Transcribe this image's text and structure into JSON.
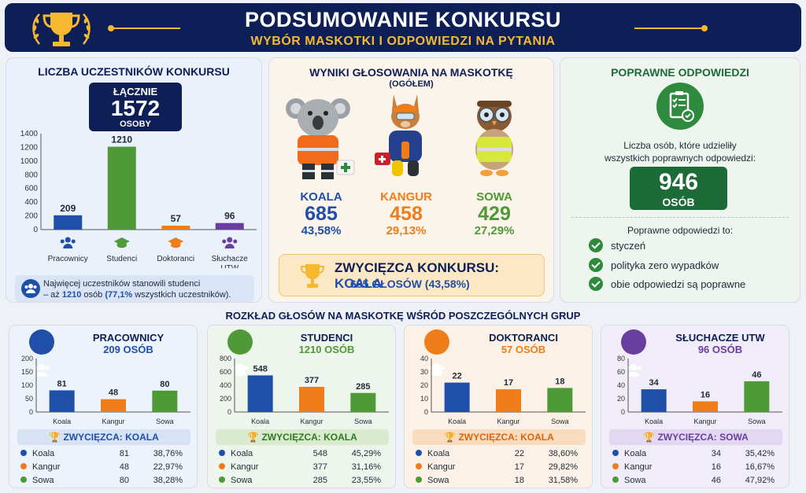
{
  "header": {
    "title": "PODSUMOWANIE KONKURSU",
    "subtitle": "WYBÓR MASKOTKI I ODPOWIEDZI NA PYTANIA"
  },
  "colors": {
    "navy": "#0e1f57",
    "gold": "#f5b82e",
    "blue": "#1f4fa8",
    "green": "#4e9a36",
    "orange": "#ef7d1a",
    "purple": "#6a3ea1"
  },
  "participants": {
    "title": "LICZBA UCZESTNIKÓW KONKURSU",
    "total_label": "ŁĄCZNIE",
    "total_value": "1572",
    "total_unit": "OSOBY",
    "note_text": "Najwięcej uczestników stanowili studenci",
    "note_prefix": "– aż ",
    "note_count": "1210",
    "note_mid": " osób ",
    "note_pct": "(77,1%",
    "note_suffix": " wszystkich uczestników)."
  },
  "chart_data": [
    {
      "type": "bar",
      "id": "participants",
      "categories": [
        "Pracownicy",
        "Studenci",
        "Doktoranci",
        "Słuchacze UTW"
      ],
      "values": [
        209,
        1210,
        57,
        96
      ],
      "ylim": [
        0,
        1400
      ],
      "yticks": [
        "0",
        "200",
        "400",
        "600",
        "800",
        "1000",
        "1200",
        "1400"
      ],
      "colors": [
        "#1f4fa8",
        "#4e9a36",
        "#ef7d1a",
        "#6a3ea1"
      ]
    },
    {
      "type": "bar",
      "id": "g1",
      "categories": [
        "Koala",
        "Kangur",
        "Sowa"
      ],
      "values": [
        81,
        48,
        80
      ],
      "ylim": [
        0,
        200
      ],
      "yticks": [
        "0",
        "50",
        "100",
        "150",
        "200"
      ]
    },
    {
      "type": "bar",
      "id": "g2",
      "categories": [
        "Koala",
        "Kangur",
        "Sowa"
      ],
      "values": [
        548,
        377,
        285
      ],
      "ylim": [
        0,
        800
      ],
      "yticks": [
        "0",
        "200",
        "400",
        "600",
        "800"
      ]
    },
    {
      "type": "bar",
      "id": "g3",
      "categories": [
        "Koala",
        "Kangur",
        "Sowa"
      ],
      "values": [
        22,
        17,
        18
      ],
      "ylim": [
        0,
        40
      ],
      "yticks": [
        "0",
        "10",
        "20",
        "30",
        "40"
      ]
    },
    {
      "type": "bar",
      "id": "g4",
      "categories": [
        "Koala",
        "Kangur",
        "Sowa"
      ],
      "values": [
        34,
        16,
        46
      ],
      "ylim": [
        0,
        80
      ],
      "yticks": [
        "0",
        "20",
        "40",
        "60",
        "80"
      ]
    }
  ],
  "voting": {
    "title": "WYNIKI GŁOSOWANIA NA MASKOTKĘ",
    "subtitle": "(OGÓŁEM)",
    "mascots": [
      {
        "name": "KOALA",
        "votes": "685",
        "pct": "43,58%"
      },
      {
        "name": "KANGUR",
        "votes": "458",
        "pct": "29,13%"
      },
      {
        "name": "SOWA",
        "votes": "429",
        "pct": "27,29%"
      }
    ],
    "winner_label": "ZWYCIĘZCA KONKURSU: ",
    "winner_name": "KOALA",
    "winner_votes": "685 GŁOSÓW (43,58%)"
  },
  "answers": {
    "title": "POPRAWNE ODPOWIEDZI",
    "desc1": "Liczba osób, które udzieliły",
    "desc2": "wszystkich poprawnych odpowiedzi:",
    "count": "946",
    "unit": "OSÓB",
    "list_title": "Poprawne odpowiedzi to:",
    "items": [
      "styczeń",
      "polityka zero wypadków",
      "obie odpowiedzi są poprawne"
    ]
  },
  "groups_title": "ROZKŁAD GŁOSÓW NA MASKOTKĘ WŚRÓD POSZCZEGÓLNYCH GRUP",
  "groups": [
    {
      "name": "PRACOWNICY",
      "count": "209 OSÓB",
      "winner": "ZWYCIĘZCA: KOALA",
      "rows": [
        [
          "Koala",
          "81",
          "38,76%"
        ],
        [
          "Kangur",
          "48",
          "22,97%"
        ],
        [
          "Sowa",
          "80",
          "38,28%"
        ]
      ]
    },
    {
      "name": "STUDENCI",
      "count": "1210 OSÓB",
      "winner": "ZWYCIĘZCA: KOALA",
      "rows": [
        [
          "Koala",
          "548",
          "45,29%"
        ],
        [
          "Kangur",
          "377",
          "31,16%"
        ],
        [
          "Sowa",
          "285",
          "23,55%"
        ]
      ]
    },
    {
      "name": "DOKTORANCI",
      "count": "57 OSÓB",
      "winner": "ZWYCIĘZCA: KOALA",
      "rows": [
        [
          "Koala",
          "22",
          "38,60%"
        ],
        [
          "Kangur",
          "17",
          "29,82%"
        ],
        [
          "Sowa",
          "18",
          "31,58%"
        ]
      ]
    },
    {
      "name": "SŁUCHACZE UTW",
      "count": "96 OSÓB",
      "winner": "ZWYCIĘZCA: SOWA",
      "rows": [
        [
          "Koala",
          "34",
          "35,42%"
        ],
        [
          "Kangur",
          "16",
          "16,67%"
        ],
        [
          "Sowa",
          "46",
          "47,92%"
        ]
      ]
    }
  ]
}
